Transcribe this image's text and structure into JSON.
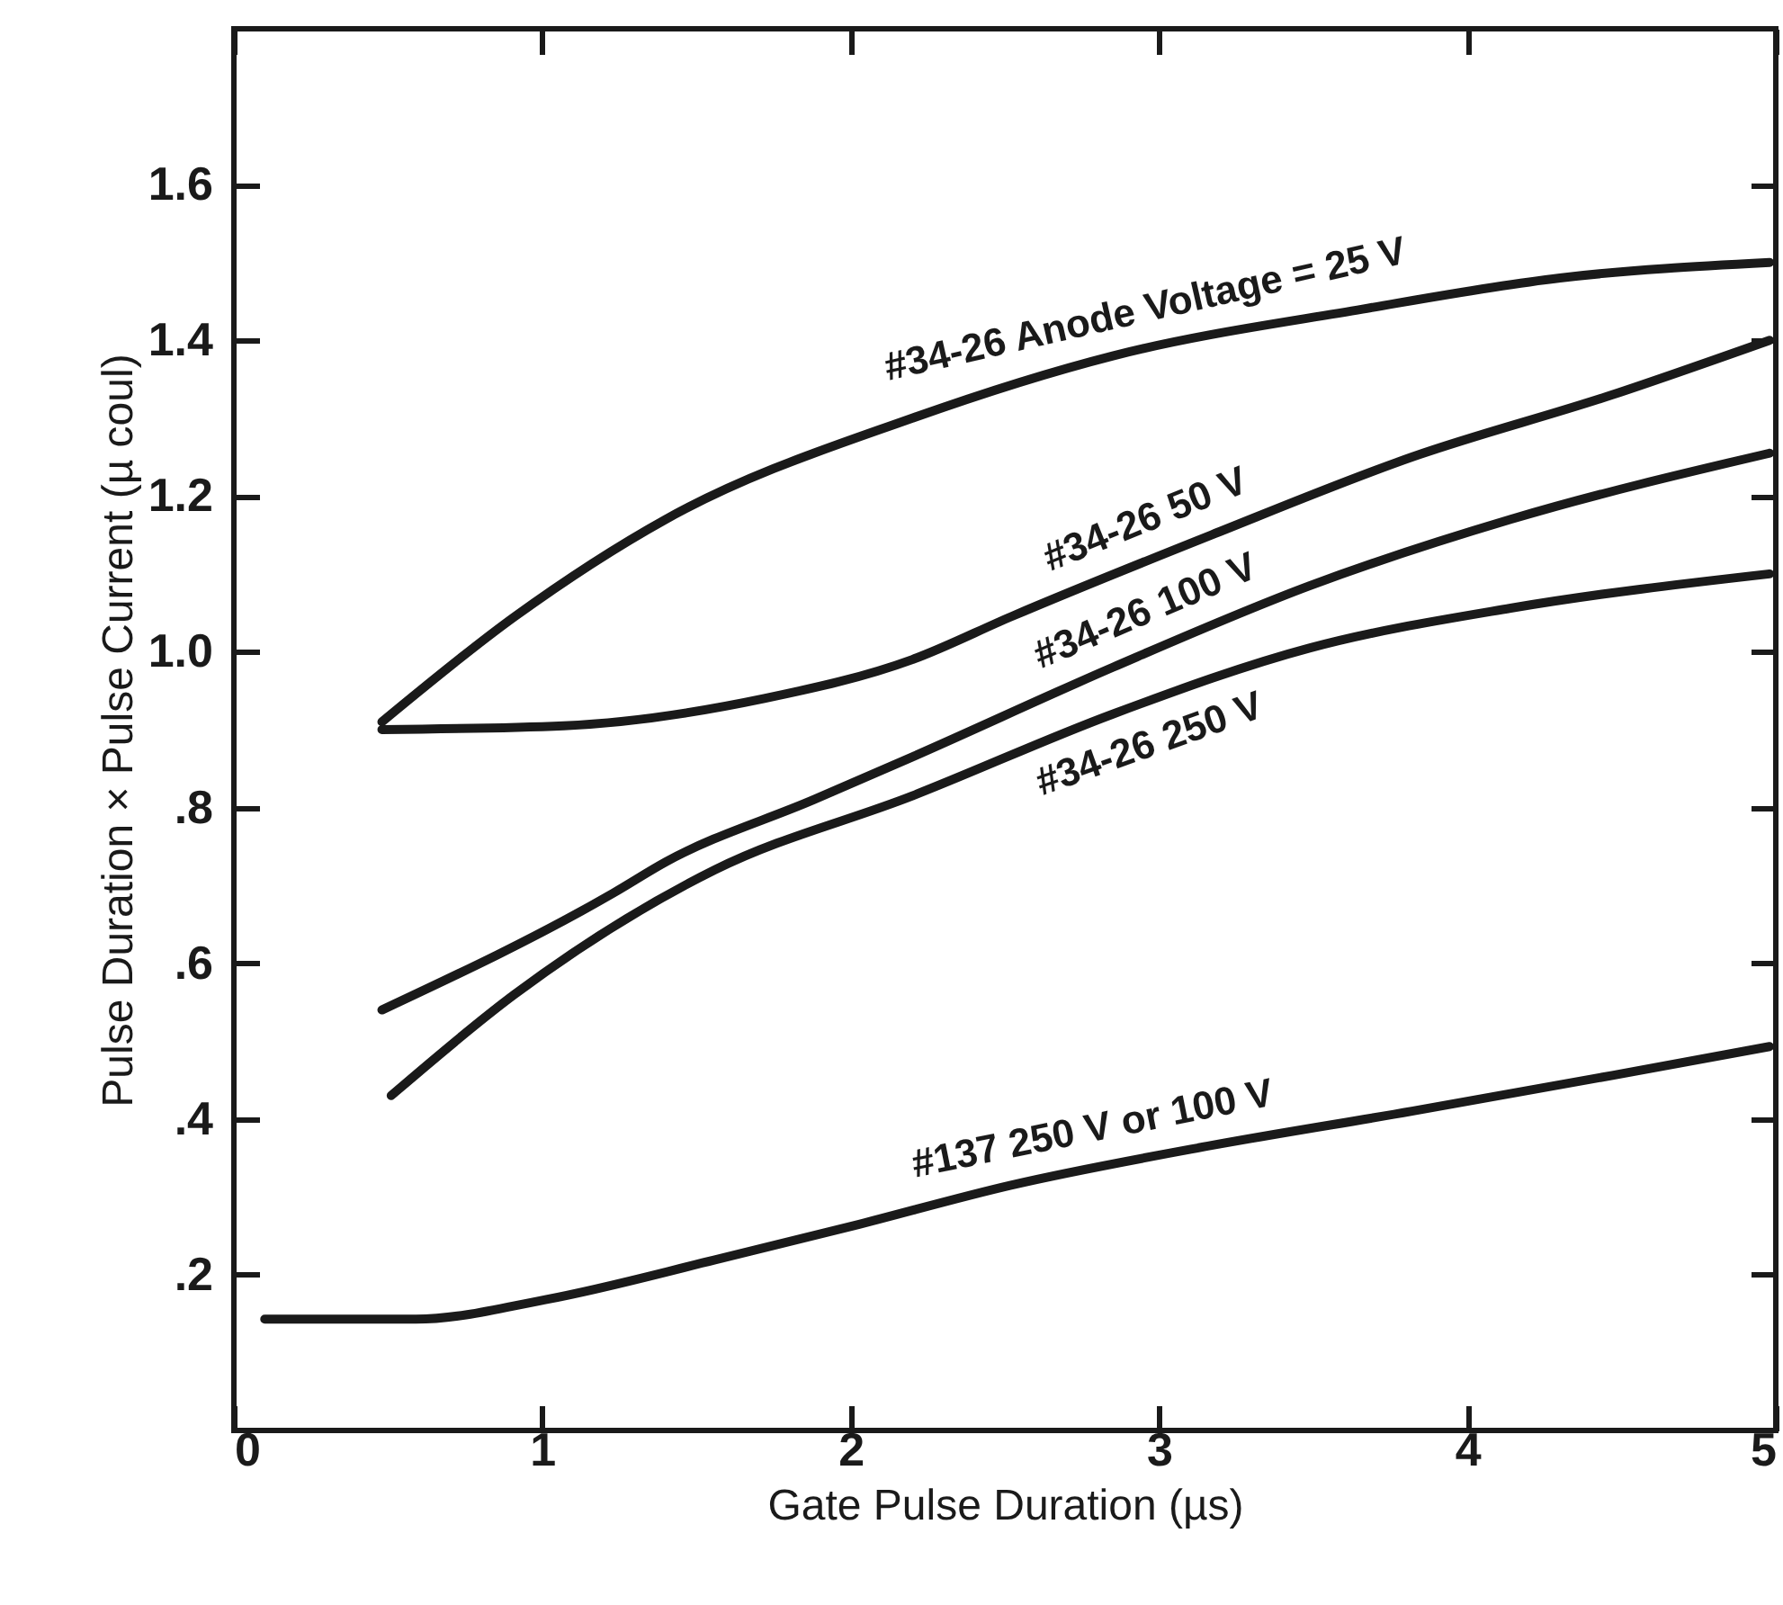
{
  "chart_data": {
    "type": "line",
    "xlabel": "Gate Pulse Duration (µs)",
    "ylabel": "Pulse Duration × Pulse Current (µ coul)",
    "xlim": [
      0,
      5
    ],
    "ylim": [
      0,
      1.8
    ],
    "xticks": [
      0,
      1,
      2,
      3,
      4,
      5
    ],
    "yticks": [
      {
        "value": 0.2,
        "label": ".2"
      },
      {
        "value": 0.4,
        "label": ".4"
      },
      {
        "value": 0.6,
        "label": ".6"
      },
      {
        "value": 0.8,
        "label": ".8"
      },
      {
        "value": 1.0,
        "label": "1.0"
      },
      {
        "value": 1.2,
        "label": "1.2"
      },
      {
        "value": 1.4,
        "label": "1.4"
      },
      {
        "value": 1.6,
        "label": "1.6"
      }
    ],
    "marker": "none",
    "line_style": "solid",
    "series": [
      {
        "name": "#34-26 Anode Voltage = 25 V",
        "color": "#1a1a1a",
        "x": [
          0.48,
          0.91,
          1.4,
          2.2,
          2.85,
          3.66,
          4.3,
          4.98
        ],
        "values": [
          0.91,
          1.045,
          1.17,
          1.3,
          1.38,
          1.44,
          1.48,
          1.5
        ]
      },
      {
        "name": "#34-26 50 V",
        "color": "#1a1a1a",
        "x": [
          0.48,
          1.07,
          1.72,
          2.2,
          2.52,
          3.17,
          3.82,
          4.47,
          4.98
        ],
        "values": [
          0.9,
          0.905,
          0.94,
          0.99,
          1.045,
          1.15,
          1.25,
          1.33,
          1.4
        ]
      },
      {
        "name": "#34-26 100 V",
        "color": "#1a1a1a",
        "x": [
          0.48,
          1.23,
          1.4,
          1.88,
          2.2,
          2.85,
          3.49,
          4.14,
          4.98
        ],
        "values": [
          0.54,
          0.69,
          0.73,
          0.81,
          0.865,
          0.98,
          1.085,
          1.17,
          1.255
        ]
      },
      {
        "name": "#34-26 250 V",
        "color": "#1a1a1a",
        "x": [
          0.51,
          0.91,
          1.56,
          2.2,
          2.85,
          3.49,
          4.14,
          4.98
        ],
        "values": [
          0.43,
          0.56,
          0.72,
          0.815,
          0.92,
          1.005,
          1.056,
          1.1
        ]
      },
      {
        "name": "#137  250 V or 100 V",
        "color": "#1a1a1a",
        "x": [
          0.1,
          0.59,
          1.01,
          1.56,
          2.01,
          2.52,
          3.17,
          3.82,
          4.47,
          4.98
        ],
        "values": [
          0.143,
          0.143,
          0.168,
          0.219,
          0.263,
          0.315,
          0.366,
          0.41,
          0.456,
          0.493
        ]
      }
    ]
  }
}
